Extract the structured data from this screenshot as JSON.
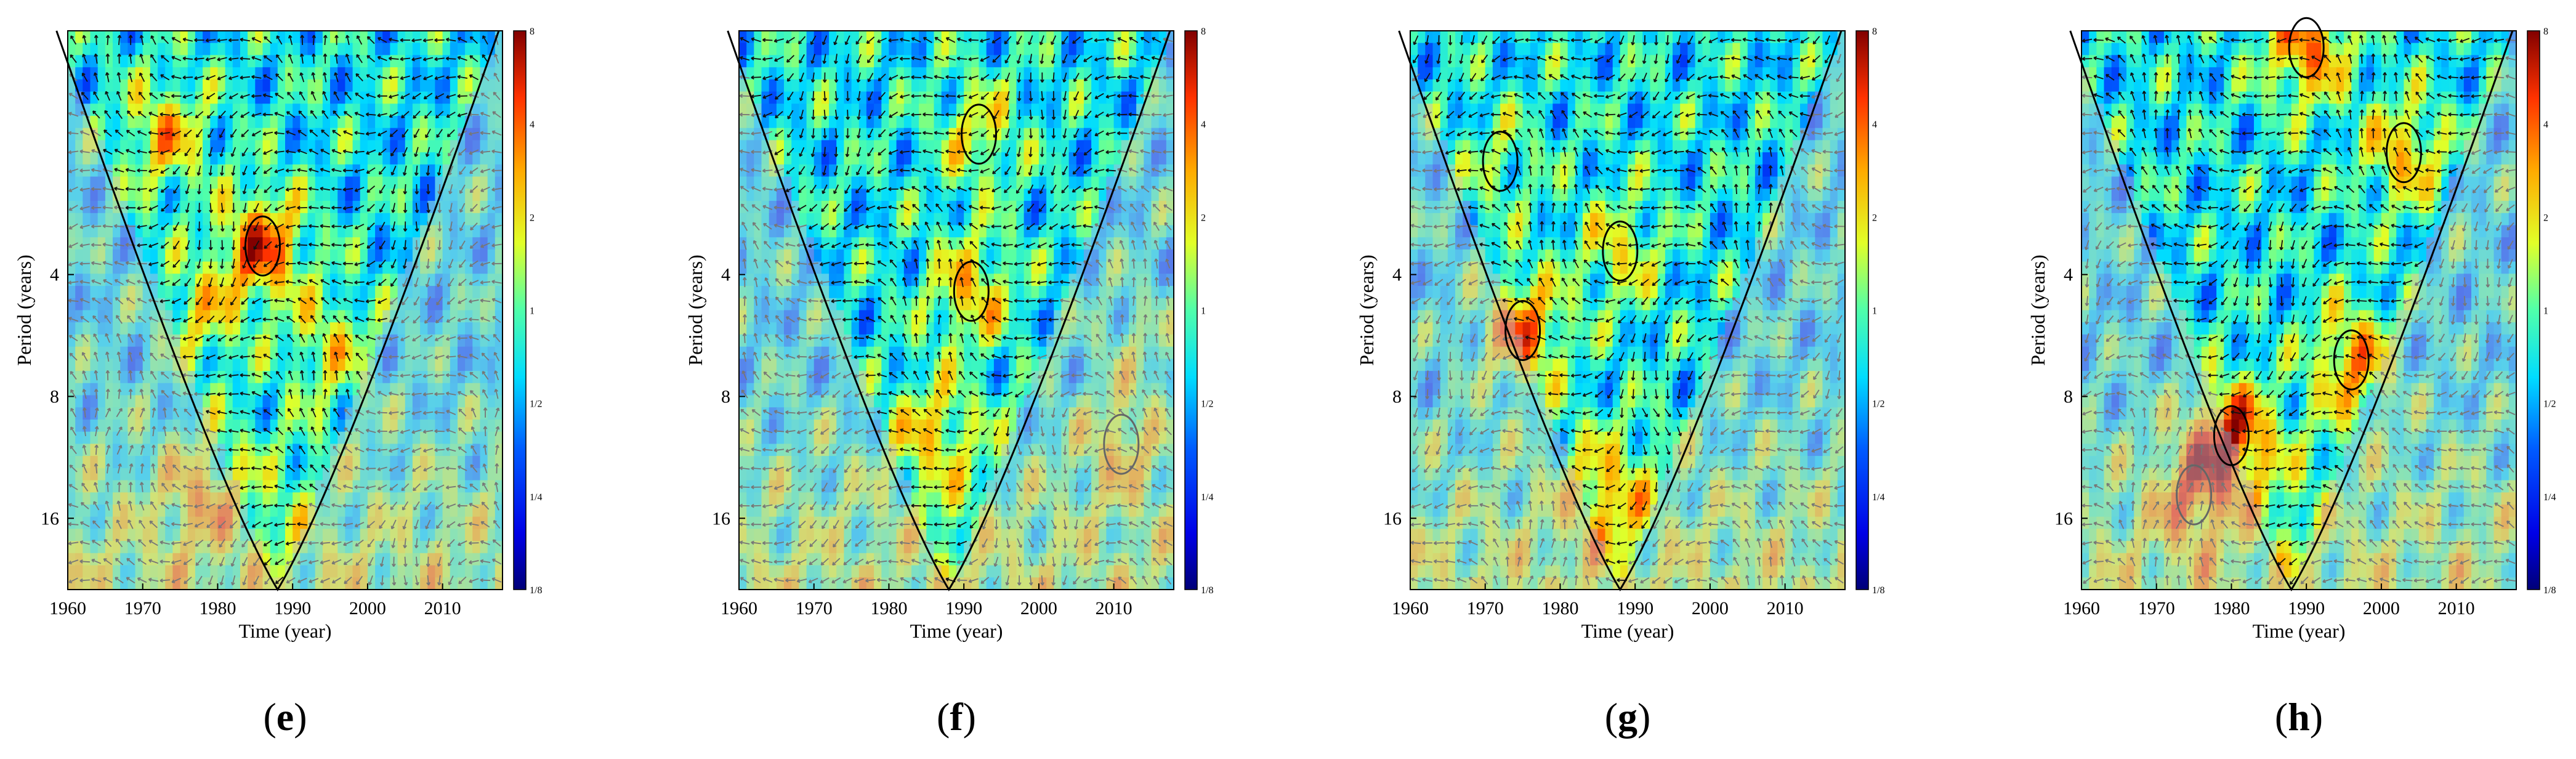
{
  "figure": {
    "panel_labels": [
      "(e)",
      "(f)",
      "(g)",
      "(h)"
    ]
  },
  "chart_data": [
    {
      "type": "heatmap",
      "panel": "e",
      "xlabel": "Time (year)",
      "ylabel": "Period (years)",
      "x_ticks": [
        1960,
        1970,
        1980,
        1990,
        2000,
        2010
      ],
      "y_ticks": [
        4,
        8,
        16
      ],
      "y_scale": "log2",
      "xlim": [
        1960,
        2018
      ],
      "ylim": [
        1,
        24
      ],
      "colorbar": {
        "scale": "log2",
        "ticks": [
          "1/8",
          "1/4",
          "1/2",
          "1",
          "2",
          "4",
          "8"
        ]
      },
      "cone_of_influence_center_year": 1988,
      "hotspots": [
        {
          "year": 1986,
          "period": 3.4,
          "power": 4,
          "significant": true
        },
        {
          "year": 1973,
          "period": 1.8,
          "power": 2.5,
          "significant": false
        },
        {
          "year": 1978,
          "period": 5.0,
          "power": 2.0,
          "significant": false
        },
        {
          "year": 1995,
          "period": 6.0,
          "power": 2.0,
          "significant": false
        },
        {
          "year": 1978,
          "period": 14,
          "power": 2.0,
          "significant": false
        }
      ]
    },
    {
      "type": "heatmap",
      "panel": "f",
      "xlabel": "Time (year)",
      "ylabel": "Period (years)",
      "x_ticks": [
        1960,
        1970,
        1980,
        1990,
        2000,
        2010
      ],
      "y_ticks": [
        4,
        8,
        16
      ],
      "y_scale": "log2",
      "xlim": [
        1960,
        2018
      ],
      "ylim": [
        1,
        24
      ],
      "colorbar": {
        "scale": "log2",
        "ticks": [
          "1/8",
          "1/4",
          "1/2",
          "1",
          "2",
          "4",
          "8"
        ]
      },
      "cone_of_influence_center_year": 1988,
      "hotspots": [
        {
          "year": 1992,
          "period": 1.8,
          "power": 2.0,
          "significant": true
        },
        {
          "year": 1991,
          "period": 4.4,
          "power": 2.5,
          "significant": true
        },
        {
          "year": 1986,
          "period": 9.5,
          "power": 2.0,
          "significant": false
        },
        {
          "year": 2011,
          "period": 10.5,
          "power": 2.0,
          "significant": true
        },
        {
          "year": 2013,
          "period": 6.0,
          "power": 1.5,
          "significant": false
        }
      ]
    },
    {
      "type": "heatmap",
      "panel": "g",
      "xlabel": "Time (year)",
      "ylabel": "Period (years)",
      "x_ticks": [
        1960,
        1970,
        1980,
        1990,
        2000,
        2010
      ],
      "y_ticks": [
        4,
        8,
        16
      ],
      "y_scale": "log2",
      "xlim": [
        1960,
        2018
      ],
      "ylim": [
        1,
        24
      ],
      "colorbar": {
        "scale": "log2",
        "ticks": [
          "1/8",
          "1/4",
          "1/2",
          "1",
          "2",
          "4",
          "8"
        ]
      },
      "cone_of_influence_center_year": 1988,
      "hotspots": [
        {
          "year": 1975,
          "period": 5.5,
          "power": 3.5,
          "significant": true
        },
        {
          "year": 1988,
          "period": 3.5,
          "power": 2.0,
          "significant": true
        },
        {
          "year": 1972,
          "period": 2.1,
          "power": 1.5,
          "significant": true
        },
        {
          "year": 1986,
          "period": 14,
          "power": 2.0,
          "significant": false
        }
      ]
    },
    {
      "type": "heatmap",
      "panel": "h",
      "xlabel": "Time (year)",
      "ylabel": "Period (years)",
      "x_ticks": [
        1960,
        1970,
        1980,
        1990,
        2000,
        2010
      ],
      "y_ticks": [
        4,
        8,
        16
      ],
      "y_scale": "log2",
      "xlim": [
        1960,
        2018
      ],
      "ylim": [
        1,
        24
      ],
      "colorbar": {
        "scale": "log2",
        "ticks": [
          "1/8",
          "1/4",
          "1/2",
          "1",
          "2",
          "4",
          "8"
        ]
      },
      "cone_of_influence_center_year": 1988,
      "hotspots": [
        {
          "year": 1990,
          "period": 1.1,
          "power": 3.5,
          "significant": true
        },
        {
          "year": 2003,
          "period": 2.0,
          "power": 2.5,
          "significant": true
        },
        {
          "year": 1996,
          "period": 6.5,
          "power": 3.0,
          "significant": true
        },
        {
          "year": 1980,
          "period": 10.0,
          "power": 4.0,
          "significant": true
        },
        {
          "year": 1975,
          "period": 14.0,
          "power": 2.5,
          "significant": true
        }
      ]
    }
  ]
}
